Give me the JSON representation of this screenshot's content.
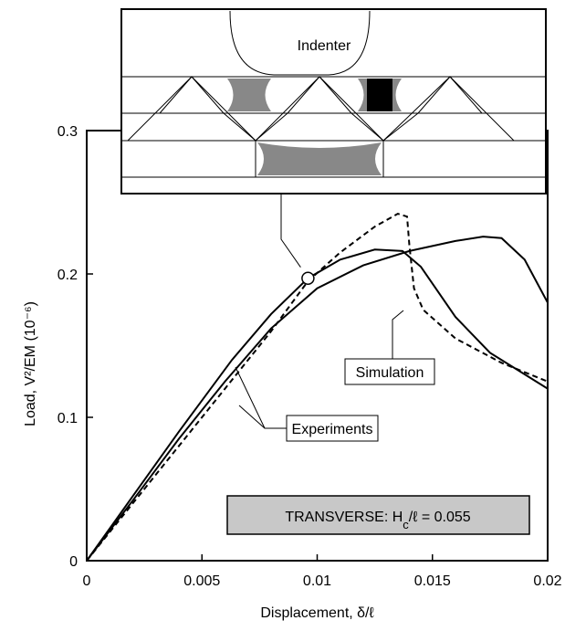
{
  "chart_data": {
    "type": "line",
    "x_label": "Displacement, δ/ℓ",
    "y_label": "Load, V²/EM  (10⁻⁶)",
    "xlim": [
      0,
      0.02
    ],
    "xticks": [
      0,
      0.005,
      0.01,
      0.015,
      0.02
    ],
    "ylim": [
      0,
      0.3
    ],
    "yticks": [
      0,
      0.1,
      0.2,
      0.3
    ],
    "series": [
      {
        "name": "Experiments",
        "color": "#000000",
        "dash": false,
        "x": [
          0,
          0.002,
          0.004,
          0.0063,
          0.008,
          0.0096,
          0.011,
          0.0125,
          0.0137,
          0.0145,
          0.016,
          0.0175,
          0.02
        ],
        "values": [
          0,
          0.045,
          0.09,
          0.14,
          0.172,
          0.197,
          0.21,
          0.217,
          0.216,
          0.205,
          0.17,
          0.145,
          0.12
        ]
      },
      {
        "name": "Experiments",
        "color": "#000000",
        "dash": false,
        "x": [
          0,
          0.002,
          0.004,
          0.006,
          0.008,
          0.01,
          0.012,
          0.014,
          0.016,
          0.0172,
          0.018,
          0.019,
          0.02
        ],
        "values": [
          0,
          0.042,
          0.085,
          0.125,
          0.162,
          0.19,
          0.206,
          0.216,
          0.223,
          0.226,
          0.225,
          0.21,
          0.18
        ]
      },
      {
        "name": "Simulation",
        "color": "#000000",
        "dash": true,
        "x": [
          0,
          0.003,
          0.006,
          0.008,
          0.0096,
          0.011,
          0.0125,
          0.0135,
          0.0139,
          0.014,
          0.0142,
          0.0146,
          0.016,
          0.018,
          0.02
        ],
        "values": [
          0,
          0.06,
          0.12,
          0.16,
          0.195,
          0.215,
          0.233,
          0.242,
          0.24,
          0.22,
          0.19,
          0.175,
          0.155,
          0.138,
          0.125
        ]
      }
    ],
    "annotation_point": {
      "x": 0.0096,
      "y": 0.197
    },
    "inset_label": "Indenter",
    "simulation_label": "Simulation",
    "experiments_label": "Experiments",
    "condition_label": [
      "TRANSVERSE:  H",
      "c",
      "/ℓ = 0.055"
    ]
  }
}
